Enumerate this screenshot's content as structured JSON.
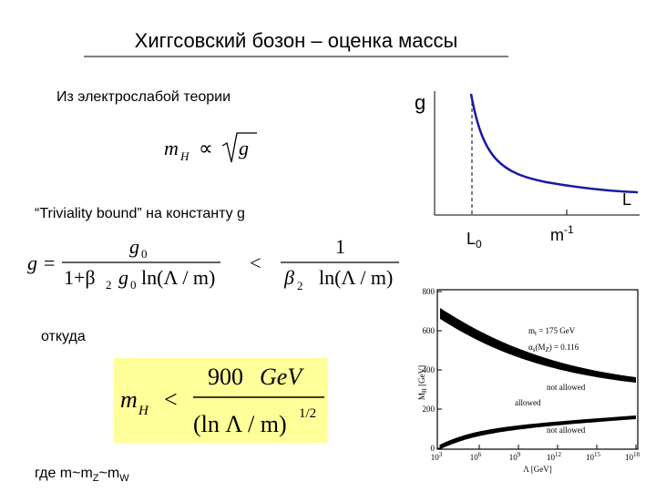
{
  "title": "Хиггсовский бозон – оценка массы",
  "text1": "Из электрослабой теории",
  "formula1": [
    "m",
    "H",
    "∝",
    "g"
  ],
  "text2": "“Triviality bound” на константу g",
  "formula2": [
    "g",
    "=",
    "g",
    "0",
    "1+β",
    "2",
    "g",
    "0",
    "ln(Λ / m)",
    "<",
    "1",
    "β",
    "2",
    "ln(Λ / m)"
  ],
  "text3": "откуда",
  "formula3": [
    "m",
    "H",
    "<",
    "900",
    "GeV",
    "(ln Λ / m)",
    "1/2"
  ],
  "text4": [
    "где m~m",
    "Z",
    "~m",
    "W"
  ],
  "sketch": {
    "y_label": "g",
    "x_label": "L",
    "marker": [
      "L",
      "0"
    ],
    "tick": [
      "m",
      "-1"
    ]
  },
  "plot": {
    "yticks": [
      0,
      200,
      400,
      600,
      800
    ],
    "xticks": [
      {
        "base": "10",
        "exp": "3"
      },
      {
        "base": "10",
        "exp": "6"
      },
      {
        "base": "10",
        "exp": "9"
      },
      {
        "base": "10",
        "exp": "12"
      },
      {
        "base": "10",
        "exp": "15"
      },
      {
        "base": "10",
        "exp": "18"
      }
    ],
    "y_label": [
      "M",
      "H",
      " [GeV]"
    ],
    "x_label": "Λ [GeV]",
    "annotation1": [
      "m",
      "t",
      " = 175 GeV"
    ],
    "annotation2": [
      "α",
      "s",
      "(M",
      "Z",
      ") = 0.116"
    ],
    "region_upper": "not allowed",
    "region_middle": "allowed",
    "region_lower": "not allowed"
  }
}
